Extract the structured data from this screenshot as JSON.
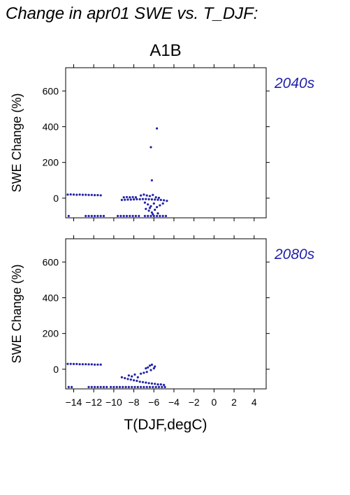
{
  "title": "Change in apr01 SWE vs. T_DJF:",
  "subtitle": "A1B",
  "xlabel": "T(DJF,degC)",
  "ylabel": "SWE Change (%)",
  "colors": {
    "points": "#2222aa",
    "period_label": "#2222aa",
    "axis": "#000000"
  },
  "chart_data": [
    {
      "type": "scatter",
      "panel_label": "2040s",
      "xlabel": "T(DJF,degC)",
      "ylabel": "SWE Change (%)",
      "xlim": [
        -14.8,
        5.2
      ],
      "ylim": [
        -110,
        730
      ],
      "xticks": [
        -14,
        -12,
        -10,
        -8,
        -6,
        -4,
        -2,
        0,
        2,
        4
      ],
      "yticks": [
        0,
        200,
        400,
        600
      ],
      "grid": false,
      "series": [
        {
          "points": [
            [
              -14.6,
              20
            ],
            [
              -14.3,
              21
            ],
            [
              -14.0,
              20
            ],
            [
              -13.7,
              19
            ],
            [
              -13.4,
              20
            ],
            [
              -13.1,
              19
            ],
            [
              -12.8,
              19
            ],
            [
              -12.5,
              18
            ],
            [
              -12.2,
              18
            ],
            [
              -11.9,
              17
            ],
            [
              -11.6,
              17
            ],
            [
              -11.3,
              16
            ],
            [
              -14.5,
              -100
            ],
            [
              -12.8,
              -100
            ],
            [
              -12.5,
              -100
            ],
            [
              -12.2,
              -100
            ],
            [
              -11.9,
              -100
            ],
            [
              -11.6,
              -100
            ],
            [
              -11.3,
              -100
            ],
            [
              -11.0,
              -100
            ],
            [
              -9.6,
              -100
            ],
            [
              -9.3,
              -100
            ],
            [
              -9.0,
              -100
            ],
            [
              -8.7,
              -100
            ],
            [
              -8.4,
              -100
            ],
            [
              -8.1,
              -100
            ],
            [
              -7.8,
              -100
            ],
            [
              -7.5,
              -100
            ],
            [
              -6.9,
              -100
            ],
            [
              -6.6,
              -100
            ],
            [
              -6.3,
              -100
            ],
            [
              -6.0,
              -100
            ],
            [
              -5.7,
              -100
            ],
            [
              -5.4,
              -100
            ],
            [
              -5.1,
              -100
            ],
            [
              -4.8,
              -100
            ],
            [
              -9.0,
              5
            ],
            [
              -8.7,
              6
            ],
            [
              -8.4,
              5
            ],
            [
              -8.1,
              6
            ],
            [
              -7.8,
              5
            ],
            [
              -9.2,
              -10
            ],
            [
              -8.9,
              -9
            ],
            [
              -8.6,
              -8
            ],
            [
              -8.3,
              -8
            ],
            [
              -8.0,
              -7
            ],
            [
              -7.7,
              -6
            ],
            [
              -7.4,
              -6
            ],
            [
              -7.1,
              -5
            ],
            [
              -6.8,
              -5
            ],
            [
              -6.5,
              -6
            ],
            [
              -6.2,
              -7
            ],
            [
              -5.9,
              -8
            ],
            [
              -5.6,
              -9
            ],
            [
              -5.3,
              -10
            ],
            [
              -5.0,
              -12
            ],
            [
              -4.7,
              -15
            ],
            [
              -7.3,
              15
            ],
            [
              -7.0,
              20
            ],
            [
              -6.7,
              15
            ],
            [
              -6.4,
              12
            ],
            [
              -6.1,
              18
            ],
            [
              -5.8,
              5
            ],
            [
              -5.5,
              2
            ],
            [
              -6.9,
              -25
            ],
            [
              -6.6,
              -35
            ],
            [
              -6.3,
              -45
            ],
            [
              -6.0,
              -30
            ],
            [
              -5.7,
              -50
            ],
            [
              -5.4,
              -40
            ],
            [
              -5.1,
              -30
            ],
            [
              -6.8,
              -60
            ],
            [
              -6.5,
              -70
            ],
            [
              -6.2,
              -80
            ],
            [
              -5.9,
              -65
            ],
            [
              -5.6,
              -85
            ],
            [
              -6.4,
              -55
            ],
            [
              -6.1,
              -90
            ],
            [
              -6.2,
              100
            ],
            [
              -6.3,
              285
            ],
            [
              -5.7,
              390
            ]
          ]
        }
      ]
    },
    {
      "type": "scatter",
      "panel_label": "2080s",
      "xlabel": "T(DJF,degC)",
      "ylabel": "SWE Change (%)",
      "xlim": [
        -14.8,
        5.2
      ],
      "ylim": [
        -110,
        730
      ],
      "xticks": [
        -14,
        -12,
        -10,
        -8,
        -6,
        -4,
        -2,
        0,
        2,
        4
      ],
      "yticks": [
        0,
        200,
        400,
        600
      ],
      "grid": false,
      "series": [
        {
          "points": [
            [
              -14.6,
              30
            ],
            [
              -14.3,
              30
            ],
            [
              -14.0,
              29
            ],
            [
              -13.7,
              29
            ],
            [
              -13.4,
              28
            ],
            [
              -13.1,
              28
            ],
            [
              -12.8,
              28
            ],
            [
              -12.5,
              27
            ],
            [
              -12.2,
              27
            ],
            [
              -11.9,
              26
            ],
            [
              -11.6,
              26
            ],
            [
              -11.3,
              26
            ],
            [
              -14.5,
              -100
            ],
            [
              -14.2,
              -100
            ],
            [
              -12.5,
              -100
            ],
            [
              -12.2,
              -100
            ],
            [
              -11.9,
              -100
            ],
            [
              -11.6,
              -100
            ],
            [
              -11.3,
              -100
            ],
            [
              -11.0,
              -100
            ],
            [
              -10.7,
              -100
            ],
            [
              -10.3,
              -100
            ],
            [
              -10.0,
              -100
            ],
            [
              -9.7,
              -100
            ],
            [
              -9.4,
              -100
            ],
            [
              -9.1,
              -100
            ],
            [
              -8.8,
              -100
            ],
            [
              -8.5,
              -100
            ],
            [
              -8.2,
              -100
            ],
            [
              -7.9,
              -100
            ],
            [
              -7.6,
              -100
            ],
            [
              -7.3,
              -100
            ],
            [
              -7.0,
              -100
            ],
            [
              -6.7,
              -100
            ],
            [
              -6.4,
              -100
            ],
            [
              -6.1,
              -100
            ],
            [
              -5.8,
              -100
            ],
            [
              -5.5,
              -100
            ],
            [
              -5.2,
              -100
            ],
            [
              -4.9,
              -100
            ],
            [
              -9.2,
              -45
            ],
            [
              -8.9,
              -50
            ],
            [
              -8.6,
              -55
            ],
            [
              -8.3,
              -58
            ],
            [
              -8.0,
              -62
            ],
            [
              -7.7,
              -65
            ],
            [
              -7.4,
              -70
            ],
            [
              -7.1,
              -72
            ],
            [
              -6.8,
              -75
            ],
            [
              -6.5,
              -78
            ],
            [
              -6.2,
              -80
            ],
            [
              -5.9,
              -82
            ],
            [
              -5.6,
              -85
            ],
            [
              -5.3,
              -85
            ],
            [
              -5.0,
              -88
            ],
            [
              -8.5,
              -35
            ],
            [
              -8.2,
              -40
            ],
            [
              -7.9,
              -30
            ],
            [
              -7.6,
              -45
            ],
            [
              -7.3,
              -25
            ],
            [
              -7.0,
              -20
            ],
            [
              -6.7,
              -15
            ],
            [
              -6.6,
              10
            ],
            [
              -6.4,
              20
            ],
            [
              -6.2,
              25
            ],
            [
              -6.0,
              5
            ],
            [
              -6.8,
              5
            ],
            [
              -6.3,
              -5
            ],
            [
              -5.9,
              15
            ]
          ]
        }
      ]
    }
  ]
}
